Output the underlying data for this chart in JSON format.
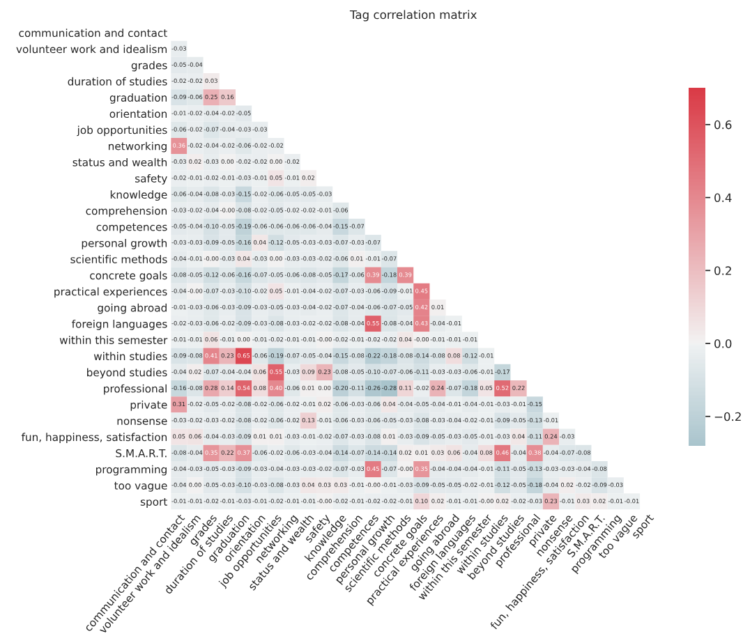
{
  "chart_data": {
    "type": "heatmap",
    "title": "Tag correlation matrix",
    "categories": [
      "communication and contact",
      "volunteer work and idealism",
      "grades",
      "duration of studies",
      "graduation",
      "orientation",
      "job opportunities",
      "networking",
      "status and wealth",
      "safety",
      "knowledge",
      "comprehension",
      "competences",
      "personal growth",
      "scientific methods",
      "concrete goals",
      "practical experiences",
      "going abroad",
      "foreign languages",
      "within this semester",
      "within studies",
      "beyond studies",
      "professional",
      "private",
      "nonsense",
      "fun, happiness, satisfaction",
      "S.M.A.R.T.",
      "programming",
      "too vague",
      "sport"
    ],
    "y_categories": [
      "communication and contact",
      "volunteer work and idealism",
      "grades",
      "duration of studies",
      "graduation",
      "orientation",
      "job opportunities",
      "networking",
      "status and wealth",
      "safety",
      "knowledge",
      "comprehension",
      "competences",
      "personal growth",
      "scientific methods",
      "concrete goals",
      "practical experiences",
      "going abroad",
      "foreign languages",
      "within this semester",
      "within studies",
      "beyond studies",
      "professional",
      "private",
      "nonsense",
      "fun, happiness, satisfaction",
      "S.M.A.R.T.",
      "programming",
      "too vague",
      "sport"
    ],
    "cells": [
      [
        null,
        null,
        null,
        null,
        null,
        null,
        null,
        null,
        null,
        null,
        null,
        null,
        null,
        null,
        null,
        null,
        null,
        null,
        null,
        null,
        null,
        null,
        null,
        null,
        null,
        null,
        null,
        null,
        null,
        null
      ],
      [
        -0.03,
        null,
        null,
        null,
        null,
        null,
        null,
        null,
        null,
        null,
        null,
        null,
        null,
        null,
        null,
        null,
        null,
        null,
        null,
        null,
        null,
        null,
        null,
        null,
        null,
        null,
        null,
        null,
        null,
        null
      ],
      [
        -0.05,
        -0.04,
        null,
        null,
        null,
        null,
        null,
        null,
        null,
        null,
        null,
        null,
        null,
        null,
        null,
        null,
        null,
        null,
        null,
        null,
        null,
        null,
        null,
        null,
        null,
        null,
        null,
        null,
        null,
        null
      ],
      [
        -0.02,
        -0.02,
        0.03,
        null,
        null,
        null,
        null,
        null,
        null,
        null,
        null,
        null,
        null,
        null,
        null,
        null,
        null,
        null,
        null,
        null,
        null,
        null,
        null,
        null,
        null,
        null,
        null,
        null,
        null,
        null
      ],
      [
        -0.09,
        -0.06,
        0.25,
        0.16,
        null,
        null,
        null,
        null,
        null,
        null,
        null,
        null,
        null,
        null,
        null,
        null,
        null,
        null,
        null,
        null,
        null,
        null,
        null,
        null,
        null,
        null,
        null,
        null,
        null,
        null
      ],
      [
        -0.01,
        -0.02,
        -0.04,
        -0.02,
        -0.05,
        null,
        null,
        null,
        null,
        null,
        null,
        null,
        null,
        null,
        null,
        null,
        null,
        null,
        null,
        null,
        null,
        null,
        null,
        null,
        null,
        null,
        null,
        null,
        null,
        null
      ],
      [
        -0.06,
        -0.02,
        -0.07,
        -0.04,
        -0.03,
        -0.03,
        null,
        null,
        null,
        null,
        null,
        null,
        null,
        null,
        null,
        null,
        null,
        null,
        null,
        null,
        null,
        null,
        null,
        null,
        null,
        null,
        null,
        null,
        null,
        null
      ],
      [
        0.36,
        -0.02,
        -0.04,
        -0.02,
        -0.06,
        -0.02,
        -0.02,
        null,
        null,
        null,
        null,
        null,
        null,
        null,
        null,
        null,
        null,
        null,
        null,
        null,
        null,
        null,
        null,
        null,
        null,
        null,
        null,
        null,
        null,
        null
      ],
      [
        -0.03,
        0.02,
        -0.03,
        0.0,
        -0.02,
        -0.02,
        0.0,
        -0.02,
        null,
        null,
        null,
        null,
        null,
        null,
        null,
        null,
        null,
        null,
        null,
        null,
        null,
        null,
        null,
        null,
        null,
        null,
        null,
        null,
        null,
        null
      ],
      [
        -0.02,
        -0.01,
        -0.02,
        -0.01,
        -0.03,
        -0.01,
        0.05,
        -0.01,
        0.02,
        null,
        null,
        null,
        null,
        null,
        null,
        null,
        null,
        null,
        null,
        null,
        null,
        null,
        null,
        null,
        null,
        null,
        null,
        null,
        null,
        null
      ],
      [
        -0.06,
        -0.04,
        -0.08,
        -0.03,
        -0.15,
        -0.02,
        -0.06,
        -0.05,
        -0.05,
        -0.03,
        null,
        null,
        null,
        null,
        null,
        null,
        null,
        null,
        null,
        null,
        null,
        null,
        null,
        null,
        null,
        null,
        null,
        null,
        null,
        null
      ],
      [
        -0.03,
        -0.02,
        -0.04,
        -0.0,
        -0.08,
        -0.02,
        -0.05,
        -0.02,
        -0.02,
        -0.01,
        -0.06,
        null,
        null,
        null,
        null,
        null,
        null,
        null,
        null,
        null,
        null,
        null,
        null,
        null,
        null,
        null,
        null,
        null,
        null,
        null
      ],
      [
        -0.05,
        -0.04,
        -0.1,
        -0.05,
        -0.19,
        -0.06,
        -0.06,
        -0.06,
        -0.06,
        -0.04,
        -0.15,
        -0.07,
        null,
        null,
        null,
        null,
        null,
        null,
        null,
        null,
        null,
        null,
        null,
        null,
        null,
        null,
        null,
        null,
        null,
        null
      ],
      [
        -0.03,
        -0.03,
        -0.09,
        -0.05,
        -0.16,
        0.04,
        -0.12,
        -0.05,
        -0.03,
        -0.03,
        -0.07,
        -0.03,
        -0.07,
        null,
        null,
        null,
        null,
        null,
        null,
        null,
        null,
        null,
        null,
        null,
        null,
        null,
        null,
        null,
        null,
        null
      ],
      [
        -0.04,
        -0.01,
        -0.0,
        -0.03,
        0.04,
        -0.03,
        0.0,
        -0.03,
        -0.03,
        -0.02,
        -0.06,
        0.01,
        -0.01,
        -0.07,
        null,
        null,
        null,
        null,
        null,
        null,
        null,
        null,
        null,
        null,
        null,
        null,
        null,
        null,
        null,
        null
      ],
      [
        -0.08,
        -0.05,
        -0.12,
        -0.06,
        -0.16,
        -0.07,
        -0.05,
        -0.06,
        -0.08,
        -0.05,
        -0.17,
        -0.06,
        0.39,
        -0.18,
        0.39,
        null,
        null,
        null,
        null,
        null,
        null,
        null,
        null,
        null,
        null,
        null,
        null,
        null,
        null,
        null
      ],
      [
        -0.04,
        -0.0,
        -0.07,
        -0.03,
        -0.1,
        -0.02,
        0.05,
        -0.01,
        -0.04,
        -0.02,
        -0.07,
        -0.03,
        -0.06,
        -0.09,
        -0.01,
        0.45,
        null,
        null,
        null,
        null,
        null,
        null,
        null,
        null,
        null,
        null,
        null,
        null,
        null,
        null
      ],
      [
        -0.01,
        -0.03,
        -0.06,
        -0.03,
        -0.09,
        -0.03,
        -0.05,
        -0.03,
        -0.04,
        -0.02,
        -0.07,
        -0.04,
        -0.06,
        -0.07,
        -0.05,
        0.42,
        0.01,
        null,
        null,
        null,
        null,
        null,
        null,
        null,
        null,
        null,
        null,
        null,
        null,
        null
      ],
      [
        -0.02,
        -0.03,
        -0.06,
        -0.02,
        -0.09,
        -0.03,
        -0.08,
        -0.03,
        -0.02,
        -0.02,
        -0.08,
        -0.04,
        0.55,
        -0.08,
        -0.04,
        0.43,
        -0.04,
        -0.01,
        null,
        null,
        null,
        null,
        null,
        null,
        null,
        null,
        null,
        null,
        null,
        null
      ],
      [
        -0.01,
        -0.01,
        0.06,
        -0.01,
        0.0,
        -0.01,
        -0.02,
        -0.01,
        -0.01,
        -0.0,
        -0.02,
        -0.01,
        -0.02,
        -0.02,
        0.04,
        -0.0,
        -0.01,
        -0.01,
        -0.01,
        null,
        null,
        null,
        null,
        null,
        null,
        null,
        null,
        null,
        null,
        null
      ],
      [
        -0.09,
        -0.08,
        0.41,
        0.23,
        0.65,
        -0.06,
        -0.19,
        -0.07,
        -0.05,
        -0.04,
        -0.15,
        -0.08,
        -0.22,
        -0.18,
        -0.08,
        -0.14,
        -0.08,
        0.08,
        -0.12,
        -0.01,
        null,
        null,
        null,
        null,
        null,
        null,
        null,
        null,
        null,
        null
      ],
      [
        -0.04,
        0.02,
        -0.07,
        -0.04,
        -0.04,
        0.06,
        0.55,
        -0.03,
        0.09,
        0.23,
        -0.08,
        -0.05,
        -0.1,
        -0.07,
        -0.06,
        -0.11,
        -0.03,
        -0.03,
        -0.06,
        -0.01,
        -0.17,
        null,
        null,
        null,
        null,
        null,
        null,
        null,
        null,
        null
      ],
      [
        -0.16,
        -0.08,
        0.28,
        0.14,
        0.54,
        0.08,
        0.4,
        -0.06,
        0.01,
        0.0,
        -0.2,
        -0.11,
        -0.26,
        -0.28,
        0.11,
        -0.02,
        0.24,
        -0.07,
        -0.18,
        0.05,
        0.52,
        0.22,
        null,
        null,
        null,
        null,
        null,
        null,
        null,
        null
      ],
      [
        0.31,
        -0.02,
        -0.05,
        -0.02,
        -0.08,
        -0.02,
        -0.06,
        -0.02,
        -0.01,
        0.02,
        -0.06,
        -0.03,
        -0.06,
        0.04,
        -0.04,
        -0.05,
        -0.04,
        -0.01,
        -0.04,
        -0.01,
        -0.03,
        -0.01,
        -0.15,
        null,
        null,
        null,
        null,
        null,
        null,
        null
      ],
      [
        -0.03,
        -0.02,
        -0.03,
        -0.02,
        -0.08,
        -0.02,
        -0.06,
        -0.02,
        0.13,
        -0.01,
        -0.06,
        -0.03,
        -0.06,
        -0.05,
        -0.03,
        -0.08,
        -0.03,
        -0.04,
        -0.02,
        -0.01,
        -0.09,
        -0.05,
        -0.13,
        -0.01,
        null,
        null,
        null,
        null,
        null,
        null
      ],
      [
        0.05,
        0.06,
        -0.04,
        -0.03,
        -0.09,
        0.01,
        0.01,
        -0.03,
        -0.01,
        -0.02,
        -0.07,
        -0.03,
        -0.08,
        0.01,
        -0.03,
        -0.09,
        -0.05,
        -0.03,
        -0.05,
        -0.01,
        -0.03,
        0.04,
        -0.11,
        0.24,
        -0.03,
        null,
        null,
        null,
        null,
        null
      ],
      [
        -0.08,
        -0.04,
        0.35,
        0.22,
        0.37,
        -0.06,
        -0.02,
        -0.06,
        -0.03,
        -0.04,
        -0.14,
        -0.07,
        -0.14,
        -0.14,
        0.02,
        0.01,
        0.03,
        0.06,
        -0.04,
        0.08,
        0.46,
        -0.04,
        0.38,
        -0.04,
        -0.07,
        -0.08,
        null,
        null,
        null,
        null
      ],
      [
        -0.04,
        -0.03,
        -0.05,
        -0.03,
        -0.09,
        -0.03,
        -0.04,
        -0.03,
        -0.03,
        -0.02,
        -0.07,
        -0.03,
        0.45,
        -0.07,
        -0.0,
        0.35,
        -0.04,
        -0.04,
        -0.04,
        -0.01,
        -0.11,
        -0.05,
        -0.13,
        -0.03,
        -0.03,
        -0.04,
        -0.08,
        null,
        null,
        null
      ],
      [
        -0.04,
        0.0,
        -0.05,
        -0.03,
        -0.1,
        -0.03,
        -0.08,
        -0.03,
        0.04,
        0.03,
        0.03,
        -0.01,
        -0.0,
        -0.01,
        -0.03,
        -0.09,
        -0.05,
        -0.05,
        -0.02,
        -0.01,
        -0.12,
        -0.05,
        -0.18,
        -0.04,
        0.02,
        -0.02,
        -0.09,
        -0.03,
        null,
        null
      ],
      [
        -0.01,
        -0.01,
        -0.02,
        -0.01,
        -0.03,
        -0.01,
        -0.02,
        -0.01,
        -0.01,
        -0.0,
        -0.02,
        -0.01,
        -0.02,
        -0.02,
        -0.01,
        0.1,
        0.02,
        -0.01,
        -0.01,
        -0.0,
        0.02,
        -0.02,
        -0.03,
        0.23,
        -0.01,
        0.03,
        0.02,
        -0.01,
        -0.01,
        null
      ]
    ],
    "cell_labels": [
      [
        null,
        null,
        null,
        null,
        null,
        null,
        null,
        null,
        null,
        null,
        null,
        null,
        null,
        null,
        null,
        null,
        null,
        null,
        null,
        null,
        null,
        null,
        null,
        null,
        null,
        null,
        null,
        null,
        null,
        null
      ],
      [
        "-0.03",
        null,
        null,
        null,
        null,
        null,
        null,
        null,
        null,
        null,
        null,
        null,
        null,
        null,
        null,
        null,
        null,
        null,
        null,
        null,
        null,
        null,
        null,
        null,
        null,
        null,
        null,
        null,
        null,
        null
      ],
      [
        "-0.05",
        "-0.04",
        null,
        null,
        null,
        null,
        null,
        null,
        null,
        null,
        null,
        null,
        null,
        null,
        null,
        null,
        null,
        null,
        null,
        null,
        null,
        null,
        null,
        null,
        null,
        null,
        null,
        null,
        null,
        null
      ],
      [
        "-0.02",
        "-0.02",
        "0.03",
        null,
        null,
        null,
        null,
        null,
        null,
        null,
        null,
        null,
        null,
        null,
        null,
        null,
        null,
        null,
        null,
        null,
        null,
        null,
        null,
        null,
        null,
        null,
        null,
        null,
        null,
        null
      ],
      [
        "-0.09",
        "-0.06",
        "0.25",
        "0.16",
        null,
        null,
        null,
        null,
        null,
        null,
        null,
        null,
        null,
        null,
        null,
        null,
        null,
        null,
        null,
        null,
        null,
        null,
        null,
        null,
        null,
        null,
        null,
        null,
        null,
        null
      ],
      [
        "-0.01",
        "-0.02",
        "-0.04",
        "-0.02",
        "-0.05",
        null,
        null,
        null,
        null,
        null,
        null,
        null,
        null,
        null,
        null,
        null,
        null,
        null,
        null,
        null,
        null,
        null,
        null,
        null,
        null,
        null,
        null,
        null,
        null,
        null
      ],
      [
        "-0.06",
        "-0.02",
        "-0.07",
        "-0.04",
        "-0.03",
        "-0.03",
        null,
        null,
        null,
        null,
        null,
        null,
        null,
        null,
        null,
        null,
        null,
        null,
        null,
        null,
        null,
        null,
        null,
        null,
        null,
        null,
        null,
        null,
        null,
        null
      ],
      [
        "0.36",
        "-0.02",
        "-0.04",
        "-0.02",
        "-0.06",
        "-0.02",
        "-0.02",
        null,
        null,
        null,
        null,
        null,
        null,
        null,
        null,
        null,
        null,
        null,
        null,
        null,
        null,
        null,
        null,
        null,
        null,
        null,
        null,
        null,
        null,
        null
      ],
      [
        "-0.03",
        "0.02",
        "-0.03",
        "0.00",
        "-0.02",
        "-0.02",
        "0.00",
        "-0.02",
        null,
        null,
        null,
        null,
        null,
        null,
        null,
        null,
        null,
        null,
        null,
        null,
        null,
        null,
        null,
        null,
        null,
        null,
        null,
        null,
        null,
        null
      ],
      [
        "-0.02",
        "-0.01",
        "-0.02",
        "-0.01",
        "-0.03",
        "-0.01",
        "0.05",
        "-0.01",
        "0.02",
        null,
        null,
        null,
        null,
        null,
        null,
        null,
        null,
        null,
        null,
        null,
        null,
        null,
        null,
        null,
        null,
        null,
        null,
        null,
        null,
        null
      ],
      [
        "-0.06",
        "-0.04",
        "-0.08",
        "-0.03",
        "-0.15",
        "-0.02",
        "-0.06",
        "-0.05",
        "-0.05",
        "-0.03",
        null,
        null,
        null,
        null,
        null,
        null,
        null,
        null,
        null,
        null,
        null,
        null,
        null,
        null,
        null,
        null,
        null,
        null,
        null,
        null
      ],
      [
        "-0.03",
        "-0.02",
        "-0.04",
        "-0.00",
        "-0.08",
        "-0.02",
        "-0.05",
        "-0.02",
        "-0.02",
        "-0.01",
        "-0.06",
        null,
        null,
        null,
        null,
        null,
        null,
        null,
        null,
        null,
        null,
        null,
        null,
        null,
        null,
        null,
        null,
        null,
        null,
        null
      ],
      [
        "-0.05",
        "-0.04",
        "-0.10",
        "-0.05",
        "-0.19",
        "-0.06",
        "-0.06",
        "-0.06",
        "-0.06",
        "-0.04",
        "-0.15",
        "-0.07",
        null,
        null,
        null,
        null,
        null,
        null,
        null,
        null,
        null,
        null,
        null,
        null,
        null,
        null,
        null,
        null,
        null,
        null
      ],
      [
        "-0.03",
        "-0.03",
        "-0.09",
        "-0.05",
        "-0.16",
        "0.04",
        "-0.12",
        "-0.05",
        "-0.03",
        "-0.03",
        "-0.07",
        "-0.03",
        "-0.07",
        null,
        null,
        null,
        null,
        null,
        null,
        null,
        null,
        null,
        null,
        null,
        null,
        null,
        null,
        null,
        null,
        null
      ],
      [
        "-0.04",
        "-0.01",
        "-0.00",
        "-0.03",
        "0.04",
        "-0.03",
        "0.00",
        "-0.03",
        "-0.03",
        "-0.02",
        "-0.06",
        "0.01",
        "-0.01",
        "-0.07",
        null,
        null,
        null,
        null,
        null,
        null,
        null,
        null,
        null,
        null,
        null,
        null,
        null,
        null,
        null,
        null
      ],
      [
        "-0.08",
        "-0.05",
        "-0.12",
        "-0.06",
        "-0.16",
        "-0.07",
        "-0.05",
        "-0.06",
        "-0.08",
        "-0.05",
        "-0.17",
        "-0.06",
        "0.39",
        "-0.18",
        "0.39",
        null,
        null,
        null,
        null,
        null,
        null,
        null,
        null,
        null,
        null,
        null,
        null,
        null,
        null,
        null
      ],
      [
        "-0.04",
        "-0.00",
        "-0.07",
        "-0.03",
        "-0.10",
        "-0.02",
        "0.05",
        "-0.01",
        "-0.04",
        "-0.02",
        "-0.07",
        "-0.03",
        "-0.06",
        "-0.09",
        "-0.01",
        "0.45",
        null,
        null,
        null,
        null,
        null,
        null,
        null,
        null,
        null,
        null,
        null,
        null,
        null,
        null
      ],
      [
        "-0.01",
        "-0.03",
        "-0.06",
        "-0.03",
        "-0.09",
        "-0.03",
        "-0.05",
        "-0.03",
        "-0.04",
        "-0.02",
        "-0.07",
        "-0.04",
        "-0.06",
        "-0.07",
        "-0.05",
        "0.42",
        "0.01",
        null,
        null,
        null,
        null,
        null,
        null,
        null,
        null,
        null,
        null,
        null,
        null,
        null
      ],
      [
        "-0.02",
        "-0.03",
        "-0.06",
        "-0.02",
        "-0.09",
        "-0.03",
        "-0.08",
        "-0.03",
        "-0.02",
        "-0.02",
        "-0.08",
        "-0.04",
        "0.55",
        "-0.08",
        "-0.04",
        "0.43",
        "-0.04",
        "-0.01",
        null,
        null,
        null,
        null,
        null,
        null,
        null,
        null,
        null,
        null,
        null,
        null
      ],
      [
        "-0.01",
        "-0.01",
        "0.06",
        "-0.01",
        "0.00",
        "-0.01",
        "-0.02",
        "-0.01",
        "-0.01",
        "-0.00",
        "-0.02",
        "-0.01",
        "-0.02",
        "-0.02",
        "0.04",
        "-0.00",
        "-0.01",
        "-0.01",
        "-0.01",
        null,
        null,
        null,
        null,
        null,
        null,
        null,
        null,
        null,
        null,
        null
      ],
      [
        "-0.09",
        "-0.08",
        "0.41",
        "0.23",
        "0.65",
        "-0.06",
        "-0.19",
        "-0.07",
        "-0.05",
        "-0.04",
        "-0.15",
        "-0.08",
        "-0.22",
        "-0.18",
        "-0.08",
        "-0.14",
        "-0.08",
        "0.08",
        "-0.12",
        "-0.01",
        null,
        null,
        null,
        null,
        null,
        null,
        null,
        null,
        null,
        null
      ],
      [
        "-0.04",
        "0.02",
        "-0.07",
        "-0.04",
        "-0.04",
        "0.06",
        "0.55",
        "-0.03",
        "0.09",
        "0.23",
        "-0.08",
        "-0.05",
        "-0.10",
        "-0.07",
        "-0.06",
        "-0.11",
        "-0.03",
        "-0.03",
        "-0.06",
        "-0.01",
        "-0.17",
        null,
        null,
        null,
        null,
        null,
        null,
        null,
        null,
        null
      ],
      [
        "-0.16",
        "-0.08",
        "0.28",
        "0.14",
        "0.54",
        "0.08",
        "0.40",
        "-0.06",
        "0.01",
        "0.00",
        "-0.20",
        "-0.11",
        "-0.26",
        "-0.28",
        "0.11",
        "-0.02",
        "0.24",
        "-0.07",
        "-0.18",
        "0.05",
        "0.52",
        "0.22",
        null,
        null,
        null,
        null,
        null,
        null,
        null,
        null
      ],
      [
        "0.31",
        "-0.02",
        "-0.05",
        "-0.02",
        "-0.08",
        "-0.02",
        "-0.06",
        "-0.02",
        "-0.01",
        "0.02",
        "-0.06",
        "-0.03",
        "-0.06",
        "0.04",
        "-0.04",
        "-0.05",
        "-0.04",
        "-0.01",
        "-0.04",
        "-0.01",
        "-0.03",
        "-0.01",
        "-0.15",
        null,
        null,
        null,
        null,
        null,
        null,
        null
      ],
      [
        "-0.03",
        "-0.02",
        "-0.03",
        "-0.02",
        "-0.08",
        "-0.02",
        "-0.06",
        "-0.02",
        "0.13",
        "-0.01",
        "-0.06",
        "-0.03",
        "-0.06",
        "-0.05",
        "-0.03",
        "-0.08",
        "-0.03",
        "-0.04",
        "-0.02",
        "-0.01",
        "-0.09",
        "-0.05",
        "-0.13",
        "-0.01",
        null,
        null,
        null,
        null,
        null,
        null
      ],
      [
        "0.05",
        "0.06",
        "-0.04",
        "-0.03",
        "-0.09",
        "0.01",
        "0.01",
        "-0.03",
        "-0.01",
        "-0.02",
        "-0.07",
        "-0.03",
        "-0.08",
        "0.01",
        "-0.03",
        "-0.09",
        "-0.05",
        "-0.03",
        "-0.05",
        "-0.01",
        "-0.03",
        "0.04",
        "-0.11",
        "0.24",
        "-0.03",
        null,
        null,
        null,
        null,
        null
      ],
      [
        "-0.08",
        "-0.04",
        "0.35",
        "0.22",
        "0.37",
        "-0.06",
        "-0.02",
        "-0.06",
        "-0.03",
        "-0.04",
        "-0.14",
        "-0.07",
        "-0.14",
        "-0.14",
        "0.02",
        "0.01",
        "0.03",
        "0.06",
        "-0.04",
        "0.08",
        "0.46",
        "-0.04",
        "0.38",
        "-0.04",
        "-0.07",
        "-0.08",
        null,
        null,
        null,
        null
      ],
      [
        "-0.04",
        "-0.03",
        "-0.05",
        "-0.03",
        "-0.09",
        "-0.03",
        "-0.04",
        "-0.03",
        "-0.03",
        "-0.02",
        "-0.07",
        "-0.03",
        "0.45",
        "-0.07",
        "-0.00",
        "0.35",
        "-0.04",
        "-0.04",
        "-0.04",
        "-0.01",
        "-0.11",
        "-0.05",
        "-0.13",
        "-0.03",
        "-0.03",
        "-0.04",
        "-0.08",
        null,
        null,
        null
      ],
      [
        "-0.04",
        "0.00",
        "-0.05",
        "-0.03",
        "-0.10",
        "-0.03",
        "-0.08",
        "-0.03",
        "0.04",
        "0.03",
        "0.03",
        "-0.01",
        "-0.00",
        "-0.01",
        "-0.03",
        "-0.09",
        "-0.05",
        "-0.05",
        "-0.02",
        "-0.01",
        "-0.12",
        "-0.05",
        "-0.18",
        "-0.04",
        "0.02",
        "-0.02",
        "-0.09",
        "-0.03",
        null,
        null
      ],
      [
        "-0.01",
        "-0.01",
        "-0.02",
        "-0.01",
        "-0.03",
        "-0.01",
        "-0.02",
        "-0.01",
        "-0.01",
        "-0.00",
        "-0.02",
        "-0.01",
        "-0.02",
        "-0.02",
        "-0.01",
        "0.10",
        "0.02",
        "-0.01",
        "-0.01",
        "-0.00",
        "0.02",
        "-0.02",
        "-0.03",
        "0.23",
        "-0.01",
        "0.03",
        "0.02",
        "-0.01",
        "-0.01",
        null
      ]
    ],
    "clim": [
      -0.28,
      0.7
    ],
    "cticks": [
      {
        "value": -0.2,
        "label": "−0.2"
      },
      {
        "value": 0.0,
        "label": "0.0"
      },
      {
        "value": 0.2,
        "label": "0.2"
      },
      {
        "value": 0.4,
        "label": "0.4"
      },
      {
        "value": 0.6,
        "label": "0.6"
      }
    ]
  }
}
